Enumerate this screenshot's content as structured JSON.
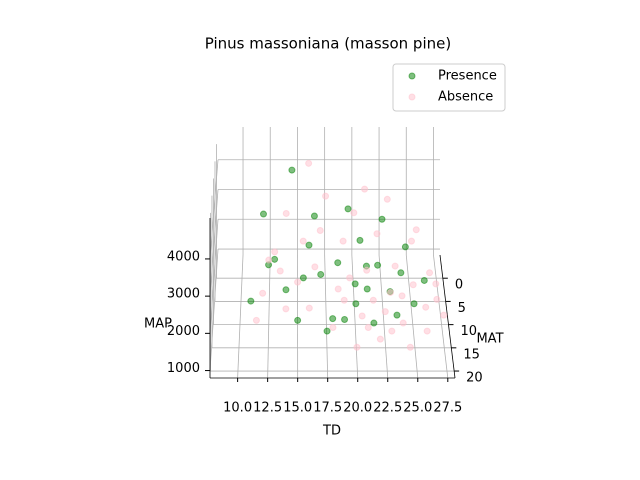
{
  "chart_data": {
    "type": "scatter3d",
    "title": "Pinus massoniana (masson pine)",
    "xlabel": "TD",
    "ylabel": "MAT",
    "zlabel": "MAP",
    "xlim": [
      7.7,
      28.1
    ],
    "ylim": [
      -5,
      21.5
    ],
    "zlim": [
      800,
      5100
    ],
    "xticks": [
      {
        "value": 10,
        "label": "10.0"
      },
      12.5,
      {
        "value": 15,
        "label": "15.0"
      },
      17.5,
      {
        "value": 20,
        "label": "20.0"
      },
      22.5,
      {
        "value": 25,
        "label": "25.0"
      },
      27.5
    ],
    "yticks": [
      0,
      5,
      10,
      15,
      20
    ],
    "zticks": [
      1000,
      2000,
      3000,
      4000
    ],
    "grid": true,
    "legend": "upper right",
    "alpha": 0.5,
    "series": [
      {
        "name": "Presence",
        "color": "green",
        "x": [
          14.5,
          12,
          16.5,
          12.5,
          15,
          18,
          20,
          21,
          22,
          20.5,
          23,
          24,
          25,
          19,
          17,
          14,
          13,
          16,
          21.5,
          23.5,
          26,
          22.5,
          19.5,
          11,
          18.5,
          20,
          24.5,
          15.5,
          21,
          17.5
        ],
        "y": [
          2,
          6,
          4,
          12,
          16,
          14,
          10,
          12,
          8,
          6,
          11,
          9,
          13,
          15,
          11,
          13,
          9,
          8,
          15,
          14,
          10,
          4,
          3,
          14,
          9,
          13,
          6,
          11,
          9,
          16
        ],
        "z": [
          4500,
          3600,
          3300,
          2800,
          1700,
          1500,
          2000,
          2100,
          2300,
          2800,
          1900,
          2200,
          1800,
          1600,
          2400,
          2200,
          2600,
          2900,
          1500,
          1600,
          2100,
          3200,
          3400,
          2000,
          2500,
          1800,
          2600,
          2300,
          2400,
          1400
        ]
      },
      {
        "name": "Absence",
        "color": "pink",
        "x": [
          16,
          12.5,
          14,
          21,
          23,
          25,
          27,
          26.5,
          24,
          22,
          20,
          18,
          16,
          14,
          12,
          13,
          17,
          19,
          21,
          23,
          25,
          27.5,
          26,
          24.5,
          22.5,
          20.5,
          18.5,
          16.5,
          15,
          19.5,
          21.5,
          23.5,
          25.5,
          20,
          22,
          17.5,
          19,
          21,
          23,
          26,
          27,
          15.5,
          13.5,
          11.5,
          24
        ],
        "y": [
          1,
          10,
          5,
          2,
          3,
          7,
          12,
          9,
          15,
          17,
          18,
          16,
          14,
          15,
          13,
          8,
          6,
          7,
          10,
          12,
          11,
          14,
          16,
          18,
          14,
          15,
          12,
          10,
          12,
          11,
          13,
          9,
          5,
          4,
          6,
          3,
          13,
          16,
          16,
          13,
          10,
          7,
          11,
          16,
          12
        ],
        "z": [
          4600,
          2700,
          3500,
          3900,
          3700,
          2900,
          1800,
          2200,
          1500,
          1300,
          1200,
          1500,
          1800,
          1900,
          2100,
          2700,
          3100,
          2900,
          2400,
          2000,
          2100,
          1600,
          1400,
          1200,
          1700,
          1700,
          2100,
          2500,
          2300,
          2300,
          1900,
          2400,
          3000,
          3400,
          3000,
          3800,
          1900,
          1500,
          1400,
          1700,
          2000,
          2900,
          2500,
          1700,
          1900
        ]
      }
    ]
  }
}
